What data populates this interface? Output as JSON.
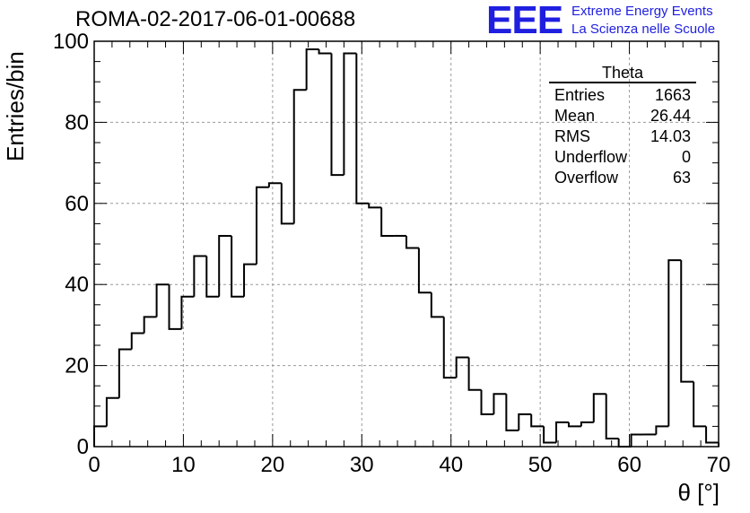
{
  "title": "ROMA-02-2017-06-01-00688",
  "logo": {
    "mark": "EEE",
    "line1": "Extreme Energy Events",
    "line2": "La Scienza nelle Scuole",
    "color": "#1f1fe0"
  },
  "stats": {
    "title": "Theta",
    "rows": [
      {
        "label": "Entries",
        "value": "1663"
      },
      {
        "label": "Mean",
        "value": "26.44"
      },
      {
        "label": "RMS",
        "value": "14.03"
      },
      {
        "label": "Underflow",
        "value": "0"
      },
      {
        "label": "Overflow",
        "value": "63"
      }
    ]
  },
  "chart_data": {
    "type": "bar",
    "histogram": true,
    "title": "ROMA-02-2017-06-01-00688",
    "xlabel": "θ [°]",
    "ylabel": "Entries/bin",
    "xlim": [
      0,
      70
    ],
    "ylim": [
      0,
      100
    ],
    "bin_width": 1.4,
    "bin_edges_start": 0,
    "values": [
      5,
      12,
      24,
      28,
      32,
      40,
      29,
      37,
      47,
      37,
      52,
      37,
      45,
      64,
      65,
      55,
      88,
      98,
      97,
      67,
      97,
      60,
      59,
      52,
      52,
      49,
      38,
      32,
      17,
      22,
      14,
      8,
      13,
      4,
      8,
      5,
      1,
      6,
      5,
      6,
      13,
      2,
      0,
      3,
      3,
      5,
      46,
      16,
      5,
      1
    ],
    "xticks": [
      0,
      10,
      20,
      30,
      40,
      50,
      60,
      70
    ],
    "yticks": [
      0,
      20,
      40,
      60,
      80,
      100
    ],
    "grid": true,
    "line_color": "#000000"
  }
}
